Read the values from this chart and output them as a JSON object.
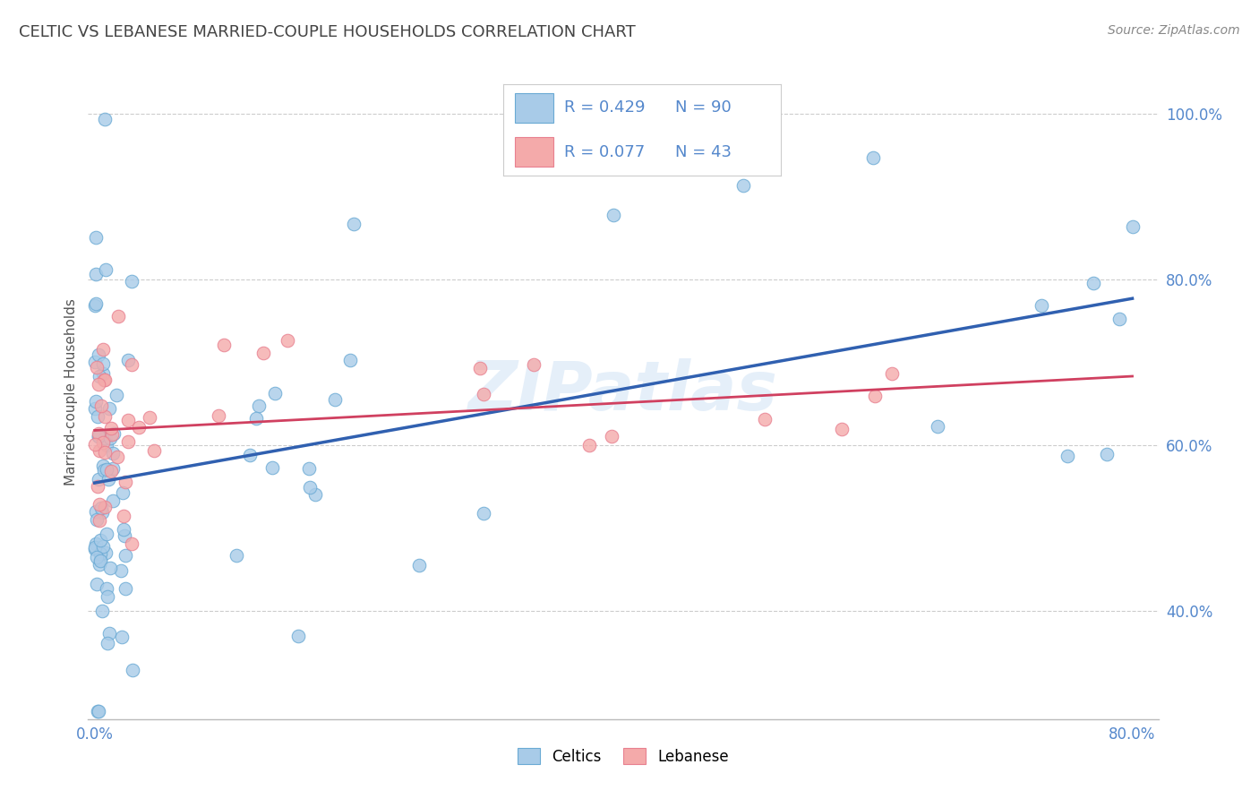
{
  "title": "CELTIC VS LEBANESE MARRIED-COUPLE HOUSEHOLDS CORRELATION CHART",
  "source_text": "Source: ZipAtlas.com",
  "ylabel": "Married-couple Households",
  "ytick_labels": [
    "40.0%",
    "60.0%",
    "80.0%",
    "100.0%"
  ],
  "ytick_values": [
    0.4,
    0.6,
    0.8,
    1.0
  ],
  "xlim": [
    -0.005,
    0.82
  ],
  "ylim": [
    0.27,
    1.06
  ],
  "celtics_color": "#A8CBE8",
  "lebanese_color": "#F4AAAA",
  "celtics_edge_color": "#6AAAD4",
  "lebanese_edge_color": "#E88090",
  "celtics_line_color": "#3060B0",
  "lebanese_line_color": "#D04060",
  "celtics_R": 0.429,
  "celtics_N": 90,
  "lebanese_R": 0.077,
  "lebanese_N": 43,
  "background_color": "#FFFFFF",
  "grid_color": "#CCCCCC",
  "watermark": "ZIPatlas",
  "tick_color": "#5588CC",
  "title_color": "#444444",
  "legend_R_color": "#5588CC",
  "legend_N_color": "#5588CC"
}
